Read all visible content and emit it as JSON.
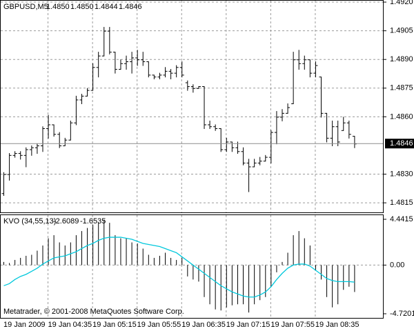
{
  "chart_data": [
    {
      "type": "ohlc",
      "title": "GBPUSD,M5",
      "header_labels": [
        "1.4850",
        "1.4850",
        "1.4844",
        "1.4846"
      ],
      "price_label": "1.4846",
      "categories": [
        "19 Jan 2009",
        null,
        null,
        null,
        null,
        null,
        null,
        null,
        "19 Jan 04:35",
        null,
        null,
        null,
        null,
        null,
        null,
        null,
        "19 Jan 05:15",
        null,
        null,
        null,
        null,
        null,
        null,
        null,
        "19 Jan 05:55",
        null,
        null,
        null,
        null,
        null,
        null,
        null,
        "19 Jan 06:35",
        null,
        null,
        null,
        null,
        null,
        null,
        null,
        "19 Jan 07:15",
        null,
        null,
        null,
        null,
        null,
        null,
        null,
        "19 Jan 07:55",
        null,
        null,
        null,
        null,
        null,
        null,
        null,
        "19 Jan 08:35",
        null,
        null,
        null,
        null,
        null,
        null,
        null
      ],
      "open": [
        1.482,
        1.483,
        1.484,
        1.4841,
        1.484,
        1.4843,
        1.4844,
        1.4845,
        1.4854,
        1.4856,
        1.4851,
        1.4845,
        1.4848,
        1.4857,
        1.4869,
        1.4871,
        1.4874,
        1.4886,
        1.4892,
        1.4905,
        1.4894,
        1.4885,
        1.4888,
        1.4889,
        1.4891,
        1.489,
        1.4889,
        1.4882,
        1.4881,
        1.4882,
        1.4884,
        1.4883,
        1.4886,
        1.4878,
        1.4876,
        1.4875,
        1.4876,
        1.4856,
        1.4855,
        1.4854,
        1.4843,
        1.4847,
        1.4844,
        1.4842,
        1.4836,
        1.4834,
        1.4836,
        1.4837,
        1.4839,
        1.4852,
        1.486,
        1.4862,
        1.4867,
        1.489,
        1.4888,
        1.489,
        1.4883,
        1.4881,
        1.4862,
        1.4849,
        1.4855,
        1.4853,
        1.4857,
        1.485
      ],
      "high": [
        1.4831,
        1.4841,
        1.4842,
        1.4842,
        1.4844,
        1.4845,
        1.4846,
        1.4855,
        1.4861,
        1.4856,
        1.4852,
        1.4849,
        1.4858,
        1.4871,
        1.4872,
        1.4875,
        1.4888,
        1.4894,
        1.4907,
        1.4907,
        1.4894,
        1.489,
        1.4892,
        1.4894,
        1.4895,
        1.4894,
        1.4889,
        1.4882,
        1.4883,
        1.4886,
        1.4885,
        1.4887,
        1.4889,
        1.4879,
        1.4877,
        1.4876,
        1.4876,
        1.4858,
        1.4856,
        1.4854,
        1.4849,
        1.4847,
        1.4847,
        1.4844,
        1.4838,
        1.4838,
        1.4839,
        1.484,
        1.4853,
        1.4863,
        1.4864,
        1.4867,
        1.4894,
        1.4895,
        1.4892,
        1.489,
        1.4889,
        1.4881,
        1.4862,
        1.4858,
        1.4858,
        1.486,
        1.4858,
        1.485
      ],
      "low": [
        1.4819,
        1.4827,
        1.4839,
        1.4838,
        1.4834,
        1.484,
        1.4841,
        1.4842,
        1.4849,
        1.485,
        1.4844,
        1.4845,
        1.4848,
        1.4856,
        1.4867,
        1.4871,
        1.4874,
        1.4881,
        1.4892,
        1.4893,
        1.4883,
        1.4885,
        1.4885,
        1.4883,
        1.4887,
        1.4887,
        1.4881,
        1.488,
        1.488,
        1.4881,
        1.488,
        1.4881,
        1.4881,
        1.4874,
        1.4873,
        1.4875,
        1.4854,
        1.4854,
        1.4853,
        1.4842,
        1.4842,
        1.4842,
        1.4841,
        1.4835,
        1.4821,
        1.4834,
        1.4835,
        1.4837,
        1.4836,
        1.4846,
        1.4858,
        1.4862,
        1.4867,
        1.4885,
        1.4885,
        1.4881,
        1.4881,
        1.486,
        1.4847,
        1.4845,
        1.4845,
        1.4853,
        1.4849,
        1.4844
      ],
      "close": [
        1.483,
        1.484,
        1.4841,
        1.484,
        1.4843,
        1.4844,
        1.4845,
        1.4854,
        1.4856,
        1.4851,
        1.4845,
        1.4848,
        1.4857,
        1.4869,
        1.4871,
        1.4874,
        1.4886,
        1.4892,
        1.4905,
        1.4894,
        1.4885,
        1.4888,
        1.4889,
        1.4891,
        1.489,
        1.4889,
        1.4882,
        1.4881,
        1.4882,
        1.4884,
        1.4883,
        1.4886,
        1.4882,
        1.4876,
        1.4875,
        1.4876,
        1.4856,
        1.4855,
        1.4854,
        1.4843,
        1.4847,
        1.4844,
        1.4842,
        1.4836,
        1.4834,
        1.4836,
        1.4837,
        1.4839,
        1.4852,
        1.486,
        1.4862,
        1.4865,
        1.489,
        1.4888,
        1.489,
        1.4883,
        1.4887,
        1.4862,
        1.4849,
        1.4855,
        1.4847,
        1.4857,
        1.4851,
        1.4846
      ],
      "color": "#000000",
      "ylim": [
        1.481,
        1.49211
      ],
      "yticks": [
        {
          "value": 1.4815,
          "label": "1.4815"
        },
        {
          "value": 1.483,
          "label": "1.4830"
        },
        {
          "value": 1.486,
          "label": "1.4860"
        },
        {
          "value": 1.4875,
          "label": "1.4875"
        },
        {
          "value": 1.489,
          "label": "1.4890"
        },
        {
          "value": 1.4905,
          "label": "1.4905"
        },
        {
          "value": 1.492,
          "label": "1.4920"
        }
      ],
      "grid": true
    },
    {
      "type": "histogram-line",
      "title": "KVO (34,55,13)",
      "credit": "Metatrader, © 2001-2008 MetaQuotes Software Corp.",
      "series": [
        {
          "color": "#000000",
          "values": [
            0.3,
            0.2,
            0.5,
            0.7,
            0.9,
            1.0,
            1.4,
            1.9,
            2.6,
            2.9,
            2.2,
            1.9,
            2.2,
            2.9,
            3.3,
            3.6,
            3.9,
            4.1,
            4.4,
            4.1,
            2.9,
            2.6,
            2.6,
            2.2,
            2.1,
            1.6,
            1.0,
            0.7,
            0.9,
            1.2,
            0.7,
            0.5,
            0.7,
            -1.1,
            -1.4,
            -1.6,
            -3.1,
            -3.8,
            -4.3,
            -4.4,
            -4.1,
            -3.9,
            -3.8,
            -3.8,
            -4.6,
            -3.8,
            -3.4,
            -3.1,
            -2.1,
            -0.7,
            0.3,
            1.2,
            2.9,
            3.3,
            2.6,
            1.9,
            -0.5,
            -1.4,
            -3.1,
            -4.1,
            -3.8,
            -2.4,
            -2.1,
            -2.6089
          ]
        },
        {
          "color": "#00c8dc",
          "values": [
            -2.0,
            -1.8,
            -1.4,
            -1.1,
            -0.9,
            -0.6,
            -0.3,
            0.1,
            0.4,
            0.7,
            0.8,
            0.9,
            1.1,
            1.3,
            1.6,
            1.9,
            2.1,
            2.4,
            2.6,
            2.7,
            2.7,
            2.7,
            2.6,
            2.5,
            2.3,
            2.1,
            2.0,
            1.9,
            1.8,
            1.6,
            1.4,
            1.2,
            0.8,
            0.4,
            0.0,
            -0.4,
            -0.8,
            -1.2,
            -1.6,
            -2.0,
            -2.3,
            -2.6,
            -2.8,
            -3.0,
            -3.1,
            -3.1,
            -2.9,
            -2.6,
            -2.1,
            -1.4,
            -0.8,
            -0.3,
            0.0,
            0.1,
            0.1,
            -0.1,
            -0.5,
            -0.9,
            -1.3,
            -1.5,
            -1.6,
            -1.6,
            -1.6,
            -1.6535
          ]
        }
      ],
      "ylim": [
        -4.7201,
        4.4415
      ],
      "yticks": [
        -4.7201,
        {
          "value": 0,
          "label": "0.00"
        },
        4.4415
      ],
      "grid": true
    }
  ]
}
